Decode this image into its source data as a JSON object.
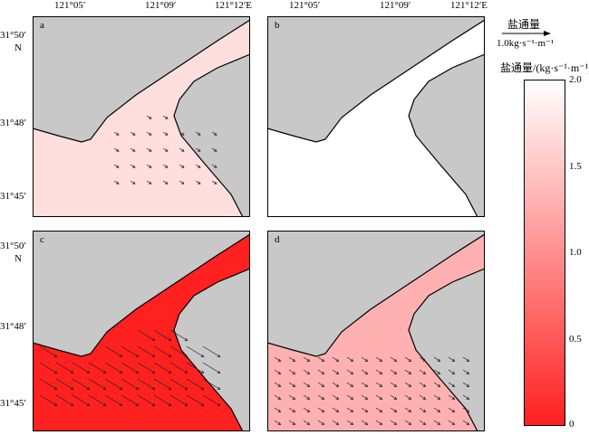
{
  "x_ticks": [
    "121°05′",
    "121°09′",
    "121°12′E"
  ],
  "y_ticks_top": [
    "31°50′",
    "N",
    "31°48′",
    "31°45′"
  ],
  "y_ticks_bottom": [
    "31°50′",
    "N",
    "31°48′",
    "31°45′"
  ],
  "panels": [
    {
      "label": "a",
      "intensity": 0.15
    },
    {
      "label": "b",
      "intensity": 0.0
    },
    {
      "label": "c",
      "intensity": 1.0
    },
    {
      "label": "d",
      "intensity": 0.35
    }
  ],
  "legend": {
    "vector_title": "盐通量",
    "vector_scale": "1.0kg·s⁻¹·m⁻¹",
    "colorbar_title": "盐通量/(kg·s⁻¹·m⁻¹)"
  },
  "colorbar": {
    "ticks": [
      "2.0",
      "1.5",
      "1.0",
      "0.5",
      "0"
    ],
    "min_color": "#ff2020",
    "max_color": "#ffffff"
  },
  "colors": {
    "land": "#c8c8c8",
    "coast": "#000000"
  }
}
